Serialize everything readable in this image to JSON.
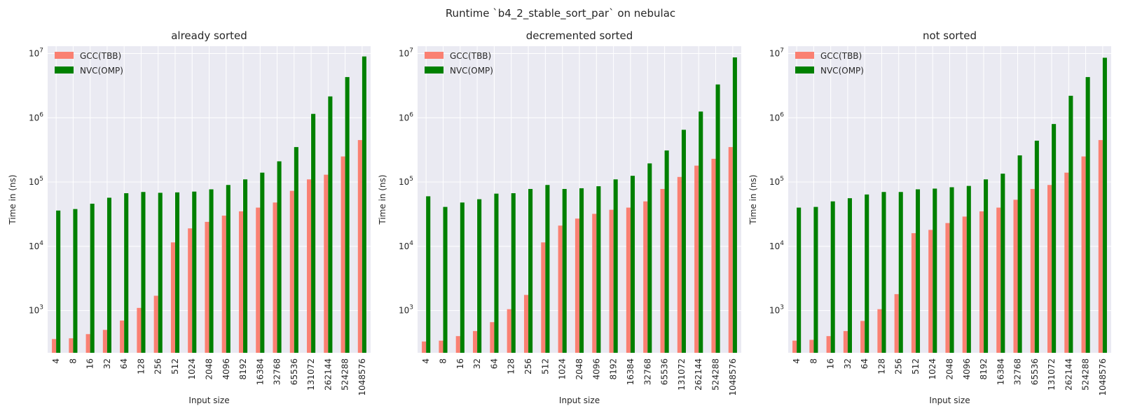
{
  "figure_title": "Runtime `b4_2_stable_sort_par` on nebulac",
  "colors": {
    "panel_bg": "#eaeaf2",
    "grid": "#ffffff",
    "series_gcc": "#fa8072",
    "series_nvc": "#008000"
  },
  "chart_data": [
    {
      "type": "bar",
      "title": "already sorted",
      "xlabel": "Input size",
      "ylabel": "Time in (ns)",
      "yscale": "log",
      "ylim": [
        220,
        13000000
      ],
      "grid": true,
      "legend_position": "top-left",
      "categories": [
        "4",
        "8",
        "16",
        "32",
        "64",
        "128",
        "256",
        "512",
        "1024",
        "2048",
        "4096",
        "8192",
        "16384",
        "32768",
        "65536",
        "131072",
        "262144",
        "524288",
        "1048576"
      ],
      "series": [
        {
          "name": "GCC(TBB)",
          "values": [
            360,
            370,
            430,
            500,
            700,
            1100,
            1700,
            11500,
            19000,
            24000,
            30000,
            35000,
            40000,
            48000,
            73000,
            110000,
            130000,
            250000,
            450000
          ]
        },
        {
          "name": "NVC(OMP)",
          "values": [
            36000,
            38000,
            46000,
            57000,
            67000,
            70000,
            68000,
            69000,
            71000,
            77000,
            90000,
            110000,
            140000,
            210000,
            350000,
            1150000,
            2150000,
            4300000,
            9000000
          ]
        }
      ]
    },
    {
      "type": "bar",
      "title": "decremented sorted",
      "xlabel": "Input size",
      "ylabel": "Time in (ns)",
      "yscale": "log",
      "ylim": [
        220,
        13000000
      ],
      "grid": true,
      "legend_position": "top-left",
      "categories": [
        "4",
        "8",
        "16",
        "32",
        "64",
        "128",
        "256",
        "512",
        "1024",
        "2048",
        "4096",
        "8192",
        "16384",
        "32768",
        "65536",
        "131072",
        "262144",
        "524288",
        "1048576"
      ],
      "series": [
        {
          "name": "GCC(TBB)",
          "values": [
            330,
            340,
            400,
            480,
            660,
            1050,
            1750,
            11500,
            21000,
            27000,
            32000,
            37000,
            40000,
            50000,
            78000,
            120000,
            180000,
            230000,
            350000
          ]
        },
        {
          "name": "NVC(OMP)",
          "values": [
            60000,
            41000,
            48000,
            54000,
            66000,
            67000,
            78000,
            90000,
            78000,
            80000,
            86000,
            110000,
            125000,
            195000,
            310000,
            650000,
            1250000,
            3300000,
            8700000
          ]
        }
      ]
    },
    {
      "type": "bar",
      "title": "not sorted",
      "xlabel": "Input size",
      "ylabel": "Time in (ns)",
      "yscale": "log",
      "ylim": [
        220,
        13000000
      ],
      "grid": true,
      "legend_position": "top-left",
      "categories": [
        "4",
        "8",
        "16",
        "32",
        "64",
        "128",
        "256",
        "512",
        "1024",
        "2048",
        "4096",
        "8192",
        "16384",
        "32768",
        "65536",
        "131072",
        "262144",
        "524288",
        "1048576"
      ],
      "series": [
        {
          "name": "GCC(TBB)",
          "values": [
            340,
            350,
            400,
            480,
            690,
            1050,
            1800,
            16000,
            18000,
            23000,
            29000,
            35000,
            40000,
            53000,
            78000,
            90000,
            140000,
            250000,
            450000
          ]
        },
        {
          "name": "NVC(OMP)",
          "values": [
            40000,
            41000,
            50000,
            56000,
            64000,
            70000,
            70000,
            77000,
            79000,
            83000,
            87000,
            110000,
            135000,
            260000,
            440000,
            800000,
            2200000,
            4300000,
            8600000
          ]
        }
      ]
    }
  ]
}
